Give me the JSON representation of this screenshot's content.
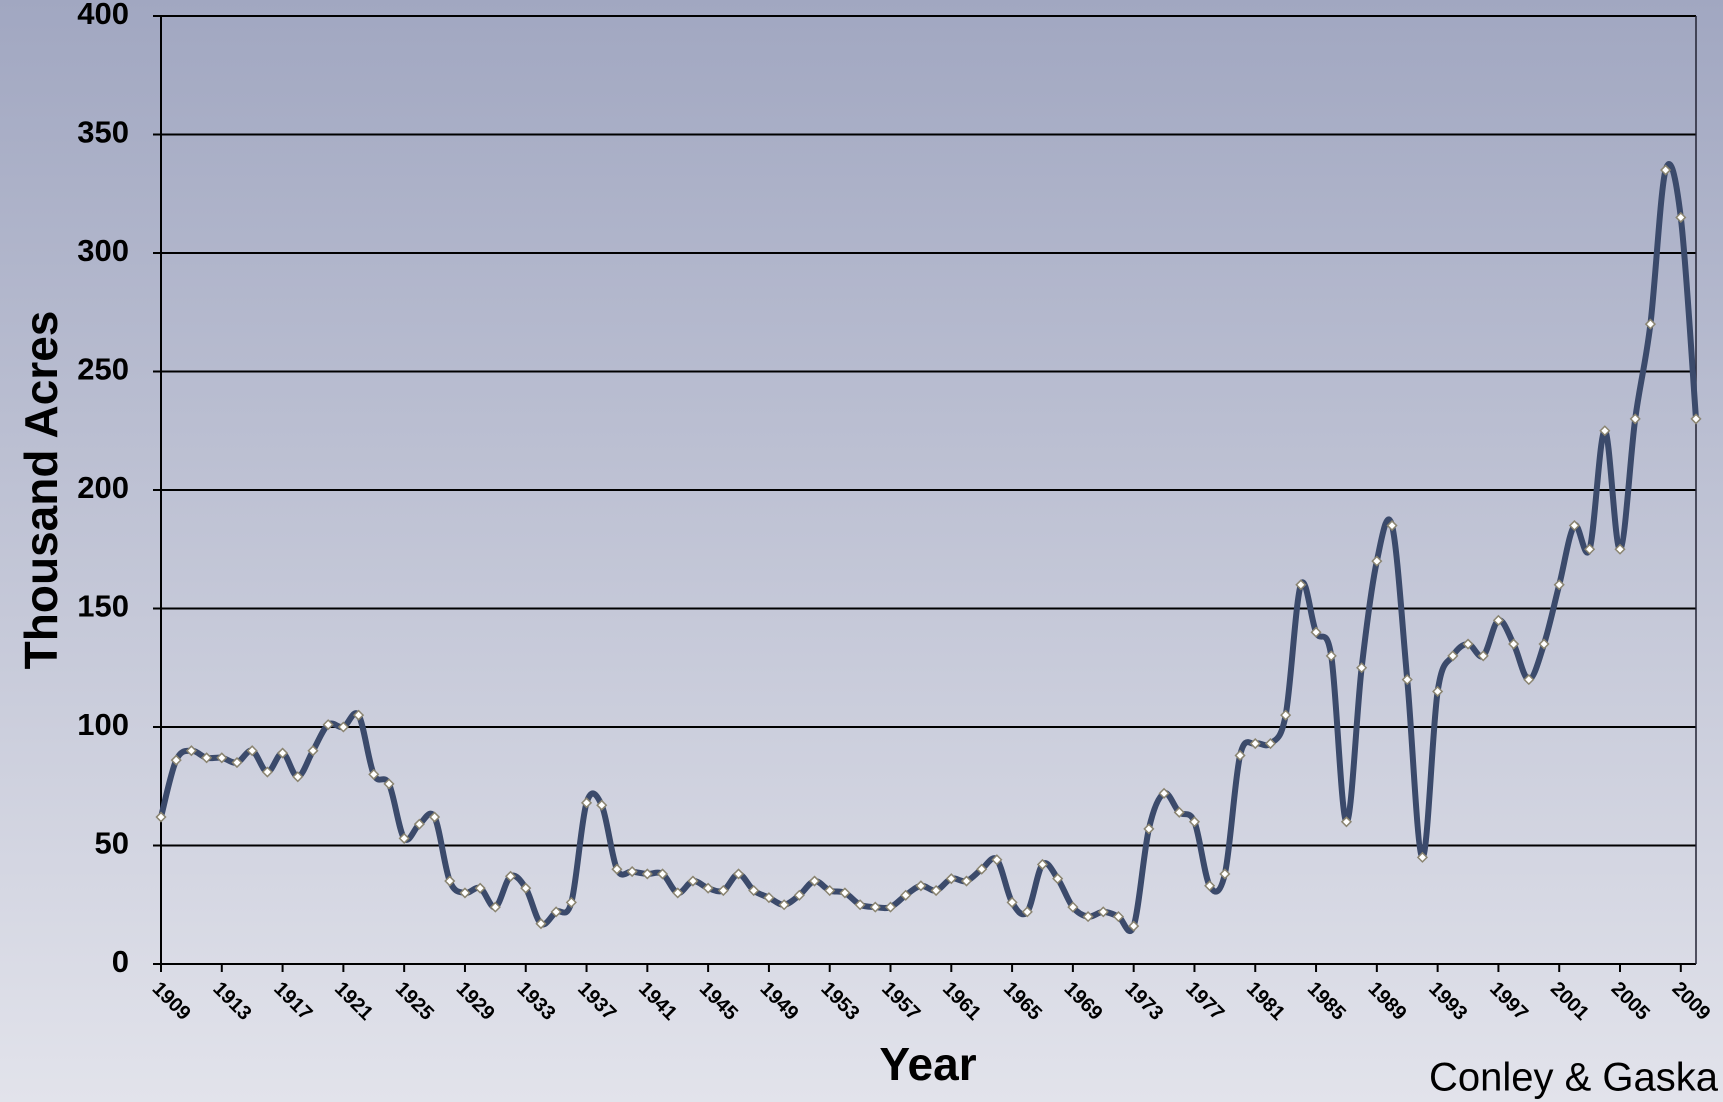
{
  "chart_data": {
    "type": "line",
    "x_label": "Year",
    "y_label": "Thousand Acres",
    "credit": "Conley & Gaska",
    "x": [
      1909,
      1910,
      1911,
      1912,
      1913,
      1914,
      1915,
      1916,
      1917,
      1918,
      1919,
      1920,
      1921,
      1922,
      1923,
      1924,
      1925,
      1926,
      1927,
      1928,
      1929,
      1930,
      1931,
      1932,
      1933,
      1934,
      1935,
      1936,
      1937,
      1938,
      1939,
      1940,
      1941,
      1942,
      1943,
      1944,
      1945,
      1946,
      1947,
      1948,
      1949,
      1950,
      1951,
      1952,
      1953,
      1954,
      1955,
      1956,
      1957,
      1958,
      1959,
      1960,
      1961,
      1962,
      1963,
      1964,
      1965,
      1966,
      1967,
      1968,
      1969,
      1970,
      1971,
      1972,
      1973,
      1974,
      1975,
      1976,
      1977,
      1978,
      1979,
      1980,
      1981,
      1982,
      1983,
      1984,
      1985,
      1986,
      1987,
      1988,
      1989,
      1990,
      1991,
      1992,
      1993,
      1994,
      1995,
      1996,
      1997,
      1998,
      1999,
      2000,
      2001,
      2002,
      2003,
      2004,
      2005,
      2006,
      2007,
      2008,
      2009,
      2010
    ],
    "series": [
      {
        "color": "#3b4a6b",
        "values": [
          62,
          86,
          90,
          87,
          87,
          85,
          90,
          81,
          89,
          79,
          90,
          101,
          100,
          105,
          80,
          76,
          53,
          59,
          62,
          35,
          30,
          32,
          24,
          37,
          32,
          17,
          22,
          26,
          68,
          67,
          40,
          39,
          38,
          38,
          30,
          35,
          32,
          31,
          38,
          31,
          28,
          25,
          29,
          35,
          31,
          30,
          25,
          24,
          24,
          29,
          33,
          31,
          36,
          35,
          40,
          44,
          26,
          22,
          42,
          36,
          24,
          20,
          22,
          20,
          16,
          57,
          72,
          64,
          60,
          33,
          38,
          88,
          93,
          93,
          105,
          160,
          140,
          130,
          60,
          125,
          170,
          185,
          120,
          45,
          115,
          130,
          135,
          130,
          145,
          135,
          120,
          135,
          160,
          185,
          175,
          225,
          175,
          230,
          270,
          335,
          315,
          230
        ]
      }
    ],
    "xlim": [
      1909,
      2010
    ],
    "xticks": [
      1909,
      1913,
      1917,
      1921,
      1925,
      1929,
      1933,
      1937,
      1941,
      1945,
      1949,
      1953,
      1957,
      1961,
      1965,
      1969,
      1973,
      1977,
      1981,
      1985,
      1989,
      1993,
      1997,
      2001,
      2005,
      2009
    ],
    "ylim": [
      0,
      400
    ],
    "yticks": [
      0,
      50,
      100,
      150,
      200,
      250,
      300,
      350,
      400
    ],
    "grid": true
  }
}
